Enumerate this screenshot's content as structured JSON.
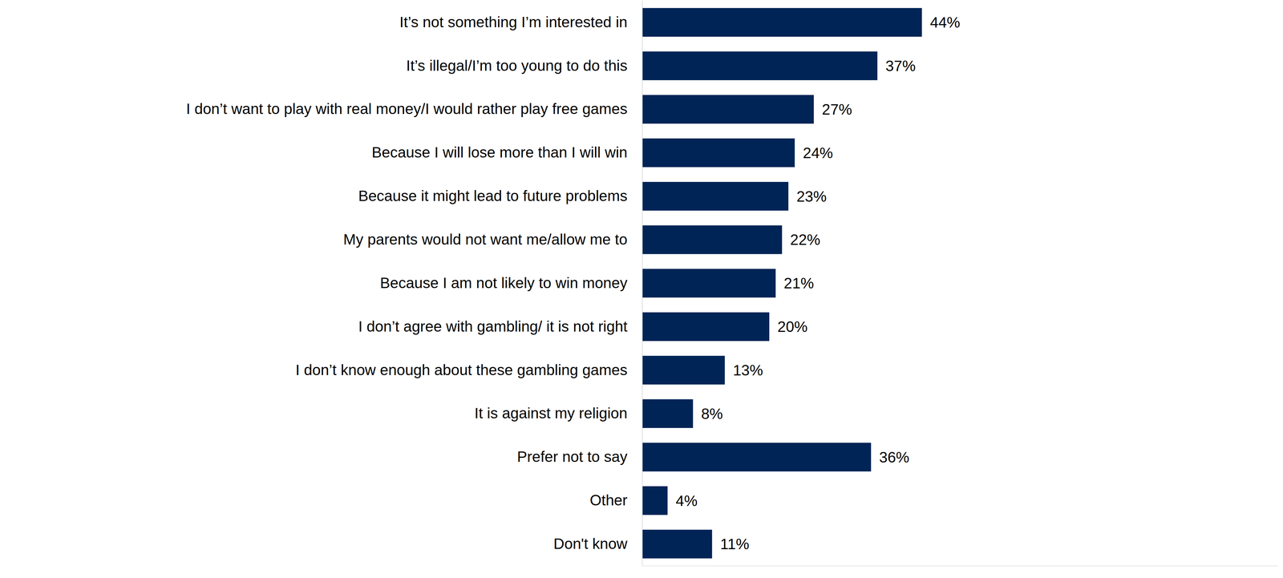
{
  "chart_data": {
    "type": "bar",
    "orientation": "horizontal",
    "categories": [
      "It’s not something I’m interested in",
      "It’s illegal/I’m too young to do this",
      "I don’t want to play with real money/I would rather play free games",
      "Because I will lose more than I will win",
      "Because it might lead to future problems",
      "My parents would not want me/allow me to",
      "Because I am not likely to win money",
      "I don’t agree with gambling/ it is not right",
      "I don’t know enough about these gambling games",
      "It is against my religion",
      "Prefer not to say",
      "Other",
      "Don't know"
    ],
    "values": [
      44,
      37,
      27,
      24,
      23,
      22,
      21,
      20,
      13,
      8,
      36,
      4,
      11
    ],
    "value_labels": [
      "44%",
      "37%",
      "27%",
      "24%",
      "23%",
      "22%",
      "21%",
      "20%",
      "13%",
      "8%",
      "36%",
      "4%",
      "11%"
    ],
    "color": "#002456",
    "xlim": [
      0,
      100
    ],
    "data_labels": true,
    "tick_labels": "y"
  }
}
